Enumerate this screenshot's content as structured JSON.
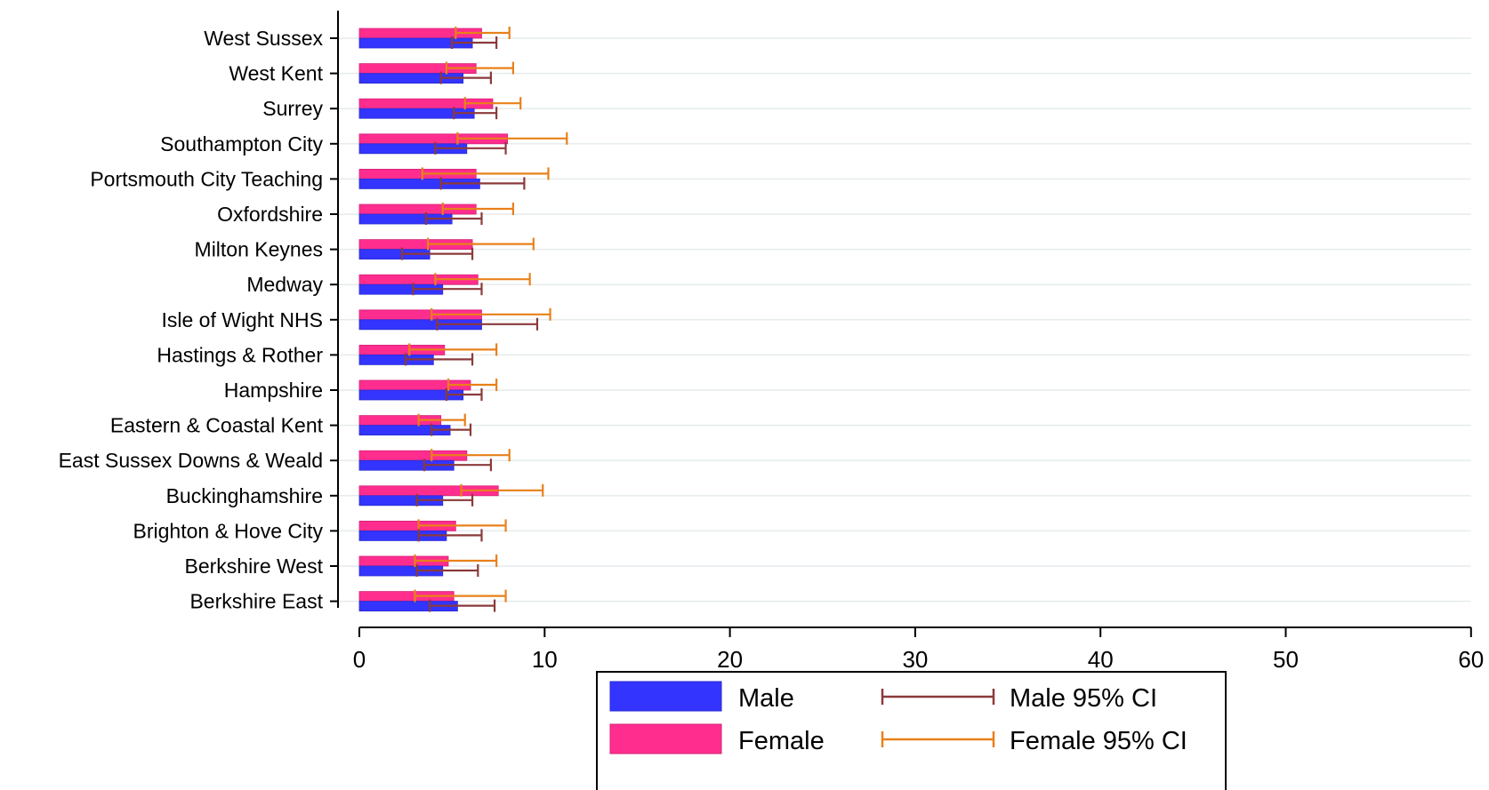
{
  "chart_data": {
    "type": "bar",
    "orientation": "horizontal",
    "categories": [
      "West Sussex",
      "West Kent",
      "Surrey",
      "Southampton City",
      "Portsmouth City Teaching",
      "Oxfordshire",
      "Milton Keynes",
      "Medway",
      "Isle of Wight NHS",
      "Hastings & Rother",
      "Hampshire",
      "Eastern & Coastal Kent",
      "East Sussex Downs & Weald",
      "Buckinghamshire",
      "Brighton & Hove City",
      "Berkshire West",
      "Berkshire East"
    ],
    "series": [
      {
        "name": "Male",
        "color": "#3434ff",
        "values": [
          6.1,
          5.6,
          6.2,
          5.8,
          6.5,
          5.0,
          3.8,
          4.5,
          6.6,
          4.0,
          5.6,
          4.9,
          5.1,
          4.5,
          4.7,
          4.5,
          5.3
        ],
        "ci_low": [
          5.0,
          4.4,
          5.1,
          4.1,
          4.4,
          3.6,
          2.3,
          2.9,
          4.2,
          2.5,
          4.7,
          3.9,
          3.5,
          3.1,
          3.2,
          3.1,
          3.8
        ],
        "ci_high": [
          7.4,
          7.1,
          7.4,
          7.9,
          8.9,
          6.6,
          6.1,
          6.6,
          9.6,
          6.1,
          6.6,
          6.0,
          7.1,
          6.1,
          6.6,
          6.4,
          7.3
        ]
      },
      {
        "name": "Female",
        "color": "#ff2d8e",
        "values": [
          6.6,
          6.3,
          7.2,
          8.0,
          6.3,
          6.3,
          6.1,
          6.4,
          6.6,
          4.6,
          6.0,
          4.4,
          5.8,
          7.5,
          5.2,
          4.8,
          5.1
        ],
        "ci_low": [
          5.2,
          4.7,
          5.7,
          5.3,
          3.4,
          4.5,
          3.7,
          4.1,
          3.9,
          2.7,
          4.8,
          3.2,
          3.9,
          5.5,
          3.2,
          3.0,
          3.0
        ],
        "ci_high": [
          8.1,
          8.3,
          8.7,
          11.2,
          10.2,
          8.3,
          9.4,
          9.2,
          10.3,
          7.4,
          7.4,
          5.7,
          8.1,
          9.9,
          7.9,
          7.4,
          7.9
        ]
      }
    ],
    "ci_series": [
      {
        "name": "Male 95% CI",
        "color": "#8b3a3a"
      },
      {
        "name": "Female 95% CI",
        "color": "#e8801a"
      }
    ],
    "xlim": [
      0,
      60
    ],
    "xticks": [
      "0",
      "10",
      "20",
      "30",
      "40",
      "50",
      "60"
    ],
    "grid": true,
    "legend_position": "bottom"
  }
}
